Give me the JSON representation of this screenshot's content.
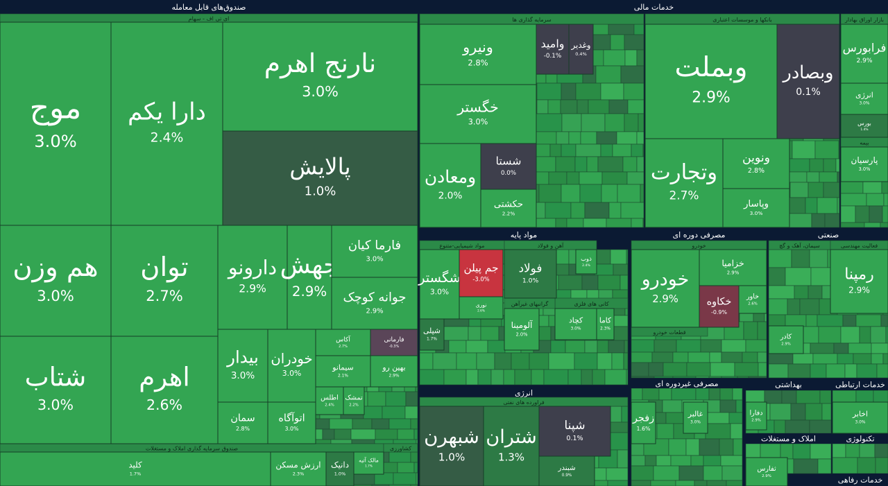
{
  "headers": [
    {
      "text": "صندوق‌های قابل معامله"
    },
    {
      "text": "خدمات مالی"
    },
    {
      "text": "مواد پایه"
    },
    {
      "text": "مصرفی دوره ای"
    },
    {
      "text": "صنعتی"
    },
    {
      "text": "انرژی"
    },
    {
      "text": "مصرفی غیردوره ای"
    },
    {
      "text": "بهداشتی"
    },
    {
      "text": "خدمات ارتباطی"
    },
    {
      "text": "املاک و مستغلات"
    },
    {
      "text": "تکنولوژی"
    },
    {
      "text": "خدمات رفاهی"
    }
  ],
  "subheaders": [
    {
      "text": "ای تی اف - سهام"
    },
    {
      "text": "صندوق سرمایه گذاری املاک و مستغلات"
    },
    {
      "text": "کشاورزی"
    },
    {
      "text": "سرمایه گذاری ها"
    },
    {
      "text": "بانکها و موسسات اعتباری"
    },
    {
      "text": "بازار اوراق بهادار"
    },
    {
      "text": "بیمه"
    },
    {
      "text": "مواد شیمیایی-متنوع"
    },
    {
      "text": "آهن و فولاد"
    },
    {
      "text": "کانی های فلزی"
    },
    {
      "text": "گرانبهای غیرآهن"
    },
    {
      "text": "فراورده های نفتی"
    },
    {
      "text": "خودرو"
    },
    {
      "text": "قطعات خودرو"
    },
    {
      "text": "سیمان، آهک و گچ"
    },
    {
      "text": "فعالیت مهندسی"
    }
  ],
  "tiles": [
    {
      "name": "موج",
      "change": "3.0%"
    },
    {
      "name": "دارا یکم",
      "change": "2.4%"
    },
    {
      "name": "نارنج اهرم",
      "change": "3.0%"
    },
    {
      "name": "پالایش",
      "change": "1.0%"
    },
    {
      "name": "هم وزن",
      "change": "3.0%"
    },
    {
      "name": "توان",
      "change": "2.7%"
    },
    {
      "name": "شتاب",
      "change": "3.0%"
    },
    {
      "name": "اهرم",
      "change": "2.6%"
    },
    {
      "name": "دارونو",
      "change": "2.9%"
    },
    {
      "name": "جهش",
      "change": "2.9%"
    },
    {
      "name": "فارما کیان",
      "change": "3.0%"
    },
    {
      "name": "جوانه کوچک",
      "change": "2.9%"
    },
    {
      "name": "بیدار",
      "change": "3.0%"
    },
    {
      "name": "خودران",
      "change": "3.0%"
    },
    {
      "name": "سمان",
      "change": "2.8%"
    },
    {
      "name": "اتوآگاه",
      "change": "3.0%"
    },
    {
      "name": "آکاس",
      "change": "2.7%"
    },
    {
      "name": "فارمانی",
      "change": "-0.3%"
    },
    {
      "name": "سیمانو",
      "change": "2.1%"
    },
    {
      "name": "بهین رو",
      "change": "2.9%"
    },
    {
      "name": "اطلس",
      "change": "2.4%"
    },
    {
      "name": "تمشک",
      "change": "2.2%"
    },
    {
      "name": "کلید",
      "change": "1.7%"
    },
    {
      "name": "ارزش مسکن",
      "change": "2.3%"
    },
    {
      "name": "دانیک",
      "change": "1.0%"
    },
    {
      "name": "مالک آتیه",
      "change": "1.7%"
    },
    {
      "name": "ونیرو",
      "change": "2.8%"
    },
    {
      "name": "خگستر",
      "change": "3.0%"
    },
    {
      "name": "ومعادن",
      "change": "2.0%"
    },
    {
      "name": "شستا",
      "change": "0.0%"
    },
    {
      "name": "حکشتی",
      "change": "2.2%"
    },
    {
      "name": "وامید",
      "change": "-0.1%"
    },
    {
      "name": "وغدیر",
      "change": "0.4%"
    },
    {
      "name": "وبملت",
      "change": "2.9%"
    },
    {
      "name": "وبصادر",
      "change": "0.1%"
    },
    {
      "name": "وتجارت",
      "change": "2.7%"
    },
    {
      "name": "ونوین",
      "change": "2.8%"
    },
    {
      "name": "وپاسار",
      "change": "3.0%"
    },
    {
      "name": "فرابورس",
      "change": "2.9%"
    },
    {
      "name": "انرژی",
      "change": "3.0%"
    },
    {
      "name": "بورس",
      "change": "1.4%"
    },
    {
      "name": "پارسیان",
      "change": "3.0%"
    },
    {
      "name": "شگستر",
      "change": "3.0%"
    },
    {
      "name": "جم پیلن",
      "change": "-3.0%"
    },
    {
      "name": "نوری",
      "change": "2.6%"
    },
    {
      "name": "شپلی",
      "change": "1.7%"
    },
    {
      "name": "فولاد",
      "change": "1.0%"
    },
    {
      "name": "ذوب",
      "change": "2.4%"
    },
    {
      "name": "کچاد",
      "change": "3.0%"
    },
    {
      "name": "کاما",
      "change": "2.3%"
    },
    {
      "name": "آلومینا",
      "change": "2.0%"
    },
    {
      "name": "خودرو",
      "change": "2.9%"
    },
    {
      "name": "خزامیا",
      "change": "2.9%"
    },
    {
      "name": "خکاوه",
      "change": "-0.9%"
    },
    {
      "name": "خاور",
      "change": "2.6%"
    },
    {
      "name": "رمپنا",
      "change": "2.9%"
    },
    {
      "name": "کادر",
      "change": "2.9%"
    },
    {
      "name": "شبهرن",
      "change": "1.0%"
    },
    {
      "name": "شتران",
      "change": "1.3%"
    },
    {
      "name": "شپنا",
      "change": "0.1%"
    },
    {
      "name": "شبندر",
      "change": "0.9%"
    },
    {
      "name": "زفجر",
      "change": "1.6%"
    },
    {
      "name": "غالبر",
      "change": "3.0%"
    },
    {
      "name": "دفارا",
      "change": "2.9%"
    },
    {
      "name": "اخابر",
      "change": "3.0%"
    },
    {
      "name": "ثفارس",
      "change": "2.9%"
    }
  ]
}
